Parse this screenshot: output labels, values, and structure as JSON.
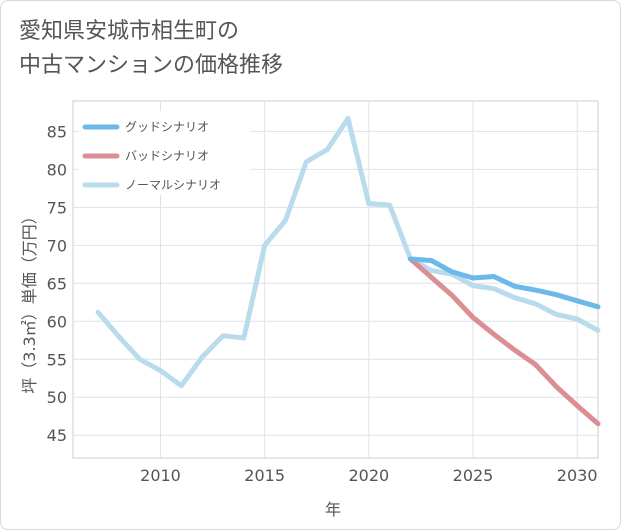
{
  "title_line1": "愛知県安城市相生町の",
  "title_line2": "中古マンションの価格推移",
  "chart_data": {
    "type": "line",
    "xlabel": "年",
    "ylabel": "坪（3.3㎡）単価（万円）",
    "xlim": [
      2005.8,
      2031
    ],
    "ylim": [
      42,
      89
    ],
    "xticks": [
      2010,
      2015,
      2020,
      2025,
      2030
    ],
    "yticks": [
      45,
      50,
      55,
      60,
      65,
      70,
      75,
      80,
      85
    ],
    "legend_position": "top-left",
    "series": [
      {
        "name": "グッドシナリオ",
        "color": "#6cb8e8",
        "x": [
          2022,
          2023,
          2024,
          2025,
          2026,
          2027,
          2028,
          2029,
          2030,
          2031
        ],
        "y": [
          68.2,
          68.0,
          66.5,
          65.7,
          65.9,
          64.6,
          64.1,
          63.5,
          62.7,
          61.9
        ]
      },
      {
        "name": "バッドシナリオ",
        "color": "#dc8e96",
        "x": [
          2022,
          2023,
          2024,
          2025,
          2026,
          2027,
          2028,
          2029,
          2030,
          2031
        ],
        "y": [
          68.2,
          65.8,
          63.4,
          60.5,
          58.3,
          56.2,
          54.3,
          51.4,
          48.9,
          46.5
        ]
      },
      {
        "name": "ノーマルシナリオ",
        "color": "#b9dcec",
        "x": [
          2007,
          2008,
          2009,
          2010,
          2011,
          2012,
          2013,
          2014,
          2015,
          2016,
          2017,
          2018,
          2019,
          2020,
          2021,
          2022,
          2023,
          2024,
          2025,
          2026,
          2027,
          2028,
          2029,
          2030,
          2031
        ],
        "y": [
          61.2,
          58.0,
          55.0,
          53.5,
          51.5,
          55.3,
          58.1,
          57.8,
          70.0,
          73.3,
          81.0,
          82.6,
          86.7,
          75.5,
          75.3,
          68.2,
          66.7,
          66.2,
          64.7,
          64.3,
          63.1,
          62.3,
          60.9,
          60.3,
          58.8
        ]
      }
    ]
  }
}
